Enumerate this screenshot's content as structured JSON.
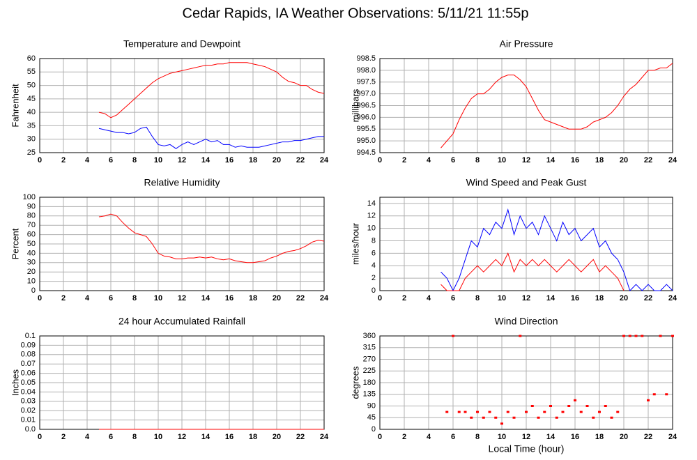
{
  "title": "Cedar Rapids, IA Weather Observations: 5/11/21 11:55p",
  "chart_data": [
    {
      "type": "line",
      "title": "Temperature and Dewpoint",
      "ylabel": "Fahrenheit",
      "x": [
        5,
        5.5,
        6,
        6.5,
        7,
        7.5,
        8,
        8.5,
        9,
        9.5,
        10,
        10.5,
        11,
        11.5,
        12,
        12.5,
        13,
        13.5,
        14,
        14.5,
        15,
        15.5,
        16,
        16.5,
        17,
        17.5,
        18,
        18.5,
        19,
        19.5,
        20,
        20.5,
        21,
        21.5,
        22,
        22.5,
        23,
        23.5,
        24
      ],
      "series": [
        {
          "color": "#ff0000",
          "values": [
            40,
            39.5,
            38,
            39,
            41,
            43,
            45,
            47,
            49,
            51,
            52.5,
            53.5,
            54.5,
            55,
            55.5,
            56,
            56.5,
            57,
            57.5,
            57.5,
            58,
            58,
            58.5,
            58.5,
            58.5,
            58.5,
            58,
            57.5,
            57,
            56,
            55,
            53,
            51.5,
            51,
            50,
            50,
            48.5,
            47.5,
            47
          ]
        },
        {
          "color": "#0000ff",
          "values": [
            34,
            33.5,
            33,
            32.5,
            32.5,
            32,
            32.5,
            34,
            34.5,
            31,
            28,
            27.5,
            28,
            26.5,
            28,
            29,
            28,
            29,
            30,
            29,
            29.5,
            28,
            28,
            27,
            27.5,
            27,
            27,
            27,
            27.5,
            28,
            28.5,
            29,
            29,
            29.5,
            29.5,
            30,
            30.5,
            31,
            31
          ]
        }
      ],
      "xlim": [
        0,
        24
      ],
      "xticks": [
        0,
        2,
        4,
        6,
        8,
        10,
        12,
        14,
        16,
        18,
        20,
        22,
        24
      ],
      "ylim": [
        25,
        60
      ],
      "yticks": [
        25,
        30,
        35,
        40,
        45,
        50,
        55,
        60
      ],
      "grid": true
    },
    {
      "type": "line",
      "title": "Air Pressure",
      "ylabel": "millibars",
      "x": [
        5,
        5.5,
        6,
        6.5,
        7,
        7.5,
        8,
        8.5,
        9,
        9.5,
        10,
        10.5,
        11,
        11.5,
        12,
        12.5,
        13,
        13.5,
        14,
        14.5,
        15,
        15.5,
        16,
        16.5,
        17,
        17.5,
        18,
        18.5,
        19,
        19.5,
        20,
        20.5,
        21,
        21.5,
        22,
        22.5,
        23,
        23.5,
        24
      ],
      "series": [
        {
          "color": "#ff0000",
          "values": [
            994.7,
            995.0,
            995.3,
            995.9,
            996.4,
            996.8,
            997.0,
            997.0,
            997.2,
            997.5,
            997.7,
            997.8,
            997.8,
            997.6,
            997.3,
            996.8,
            996.3,
            995.9,
            995.8,
            995.7,
            995.6,
            995.5,
            995.5,
            995.5,
            995.6,
            995.8,
            995.9,
            996.0,
            996.2,
            996.5,
            996.9,
            997.2,
            997.4,
            997.7,
            998.0,
            998.0,
            998.1,
            998.1,
            998.3
          ]
        }
      ],
      "xlim": [
        0,
        24
      ],
      "xticks": [
        0,
        2,
        4,
        6,
        8,
        10,
        12,
        14,
        16,
        18,
        20,
        22,
        24
      ],
      "ylim": [
        994.5,
        998.5
      ],
      "yticks": [
        994.5,
        {
          "value": 995,
          "label": "995.0"
        },
        995.5,
        {
          "value": 996,
          "label": "996.0"
        },
        996.5,
        {
          "value": 997,
          "label": "997.0"
        },
        997.5,
        {
          "value": 998,
          "label": "998.0"
        },
        998.5
      ],
      "grid": true
    },
    {
      "type": "line",
      "title": "Relative Humidity",
      "ylabel": "Percent",
      "x": [
        5,
        5.5,
        6,
        6.5,
        7,
        7.5,
        8,
        8.5,
        9,
        9.5,
        10,
        10.5,
        11,
        11.5,
        12,
        12.5,
        13,
        13.5,
        14,
        14.5,
        15,
        15.5,
        16,
        16.5,
        17,
        17.5,
        18,
        18.5,
        19,
        19.5,
        20,
        20.5,
        21,
        21.5,
        22,
        22.5,
        23,
        23.5,
        24
      ],
      "series": [
        {
          "color": "#ff0000",
          "values": [
            79,
            80,
            82,
            80,
            73,
            67,
            62,
            60,
            58,
            50,
            40,
            37,
            36,
            34,
            34,
            35,
            35,
            36,
            35,
            36,
            34,
            33,
            34,
            32,
            31,
            30,
            30,
            31,
            32,
            35,
            37,
            40,
            42,
            43,
            45,
            48,
            52,
            54,
            53
          ]
        }
      ],
      "xlim": [
        0,
        24
      ],
      "xticks": [
        0,
        2,
        4,
        6,
        8,
        10,
        12,
        14,
        16,
        18,
        20,
        22,
        24
      ],
      "ylim": [
        0,
        100
      ],
      "yticks": [
        0,
        10,
        20,
        30,
        40,
        50,
        60,
        70,
        80,
        90,
        100
      ],
      "grid": true
    },
    {
      "type": "line",
      "title": "Wind Speed and Peak Gust",
      "ylabel": "miles/hour",
      "x": [
        5,
        5.5,
        6,
        6.5,
        7,
        7.5,
        8,
        8.5,
        9,
        9.5,
        10,
        10.5,
        11,
        11.5,
        12,
        12.5,
        13,
        13.5,
        14,
        14.5,
        15,
        15.5,
        16,
        16.5,
        17,
        17.5,
        18,
        18.5,
        19,
        19.5,
        20,
        20.5,
        21,
        21.5,
        22,
        22.5,
        23,
        23.5,
        24
      ],
      "series": [
        {
          "color": "#0000ff",
          "values": [
            3,
            2,
            0,
            2,
            5,
            8,
            7,
            10,
            9,
            11,
            10,
            13,
            9,
            12,
            10,
            11,
            9,
            12,
            10,
            8,
            11,
            9,
            10,
            8,
            9,
            10,
            7,
            8,
            6,
            5,
            3,
            0,
            1,
            0,
            1,
            0,
            0,
            1,
            0
          ]
        },
        {
          "color": "#ff0000",
          "values": [
            1,
            0,
            0,
            0,
            2,
            3,
            4,
            3,
            4,
            5,
            4,
            6,
            3,
            5,
            4,
            5,
            4,
            5,
            4,
            3,
            4,
            5,
            4,
            3,
            4,
            5,
            3,
            4,
            3,
            2,
            0,
            null,
            null,
            null,
            null,
            null,
            null,
            null,
            null
          ]
        }
      ],
      "xlim": [
        0,
        24
      ],
      "xticks": [
        0,
        2,
        4,
        6,
        8,
        10,
        12,
        14,
        16,
        18,
        20,
        22,
        24
      ],
      "ylim": [
        0,
        15
      ],
      "yticks": [
        0,
        2,
        4,
        6,
        8,
        10,
        12,
        14
      ],
      "grid": true
    },
    {
      "type": "line",
      "title": "24 hour Accumulated Rainfall",
      "ylabel": "Inches",
      "x": [
        5,
        24
      ],
      "series": [
        {
          "color": "#ff0000",
          "values": [
            0,
            0
          ]
        }
      ],
      "xlim": [
        0,
        24
      ],
      "xticks": [
        0,
        2,
        4,
        6,
        8,
        10,
        12,
        14,
        16,
        18,
        20,
        22,
        24
      ],
      "ylim": [
        0,
        0.1
      ],
      "yticks": [
        {
          "value": 0,
          "label": "0.0"
        },
        0.01,
        0.02,
        0.03,
        0.04,
        0.05,
        0.06,
        0.07,
        0.08,
        0.09,
        0.1
      ],
      "grid": true
    },
    {
      "type": "scatter",
      "title": "Wind Direction",
      "ylabel": "degrees",
      "xlabel": "Local Time (hour)",
      "x": [
        5.5,
        6,
        6.5,
        7,
        7.5,
        8,
        8.5,
        9,
        9.5,
        10,
        10.5,
        11,
        11.5,
        12,
        12.5,
        13,
        13.5,
        14,
        14.5,
        15,
        15.5,
        16,
        16.5,
        17,
        17.5,
        18,
        18.5,
        19,
        19.5,
        20,
        20.5,
        21,
        21.5,
        22,
        22.5,
        23,
        23.5,
        24
      ],
      "series": [
        {
          "color": "#ff0000",
          "values": [
            67,
            360,
            67,
            67,
            45,
            67,
            45,
            67,
            45,
            22,
            67,
            45,
            360,
            67,
            90,
            45,
            67,
            90,
            45,
            67,
            90,
            112,
            67,
            90,
            45,
            67,
            90,
            45,
            67,
            360,
            360,
            360,
            360,
            112,
            135,
            360,
            135,
            360
          ]
        }
      ],
      "xlim": [
        0,
        24
      ],
      "xticks": [
        0,
        2,
        4,
        6,
        8,
        10,
        12,
        14,
        16,
        18,
        20,
        22,
        24
      ],
      "ylim": [
        0,
        360
      ],
      "yticks": [
        0,
        45,
        90,
        135,
        180,
        225,
        270,
        315,
        360
      ],
      "grid": true
    }
  ]
}
